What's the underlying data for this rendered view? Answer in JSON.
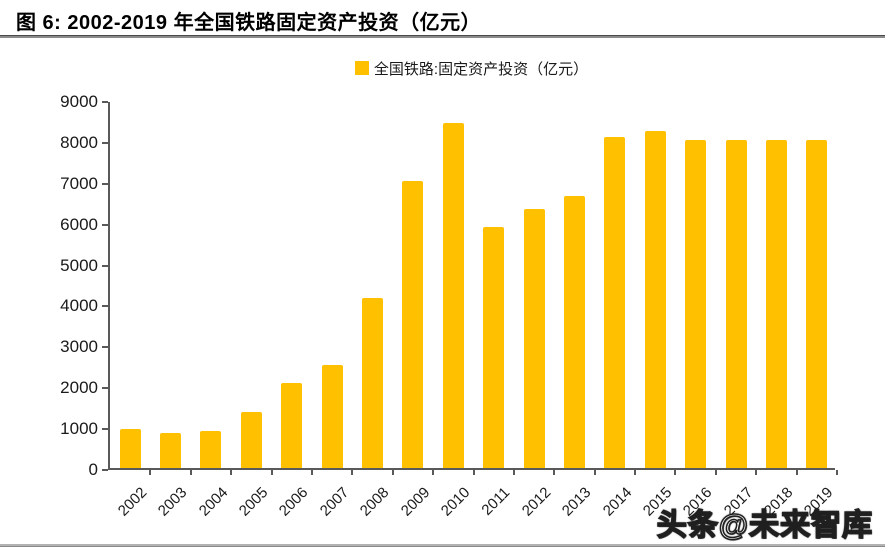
{
  "header": {
    "title": "图 6:  2002-2019 年全国铁路固定资产投资（亿元）"
  },
  "legend": {
    "label": "全国铁路:固定资产投资（亿元）",
    "marker_color": "#FFC000"
  },
  "chart_data": {
    "type": "bar",
    "title": "2002-2019 年全国铁路固定资产投资（亿元）",
    "series_name": "全国铁路:固定资产投资（亿元）",
    "unit": "亿元",
    "categories": [
      "2002",
      "2003",
      "2004",
      "2005",
      "2006",
      "2007",
      "2008",
      "2009",
      "2010",
      "2011",
      "2012",
      "2013",
      "2014",
      "2015",
      "2016",
      "2017",
      "2018",
      "2019"
    ],
    "values": [
      950,
      860,
      901,
      1364,
      2088,
      2521,
      4168,
      7013,
      8427,
      5906,
      6340,
      6657,
      8088,
      8238,
      8015,
      8010,
      8028,
      8029
    ],
    "ylim": [
      0,
      9000
    ],
    "ytick_step": 1000,
    "yticks": [
      0,
      1000,
      2000,
      3000,
      4000,
      5000,
      6000,
      7000,
      8000,
      9000
    ],
    "bar_color": "#FFC000",
    "axis_color": "#595959",
    "grid": false,
    "legend_position": "top-center",
    "xlabel_rotation": -45
  },
  "watermark": {
    "text": "头条@未来智库"
  }
}
